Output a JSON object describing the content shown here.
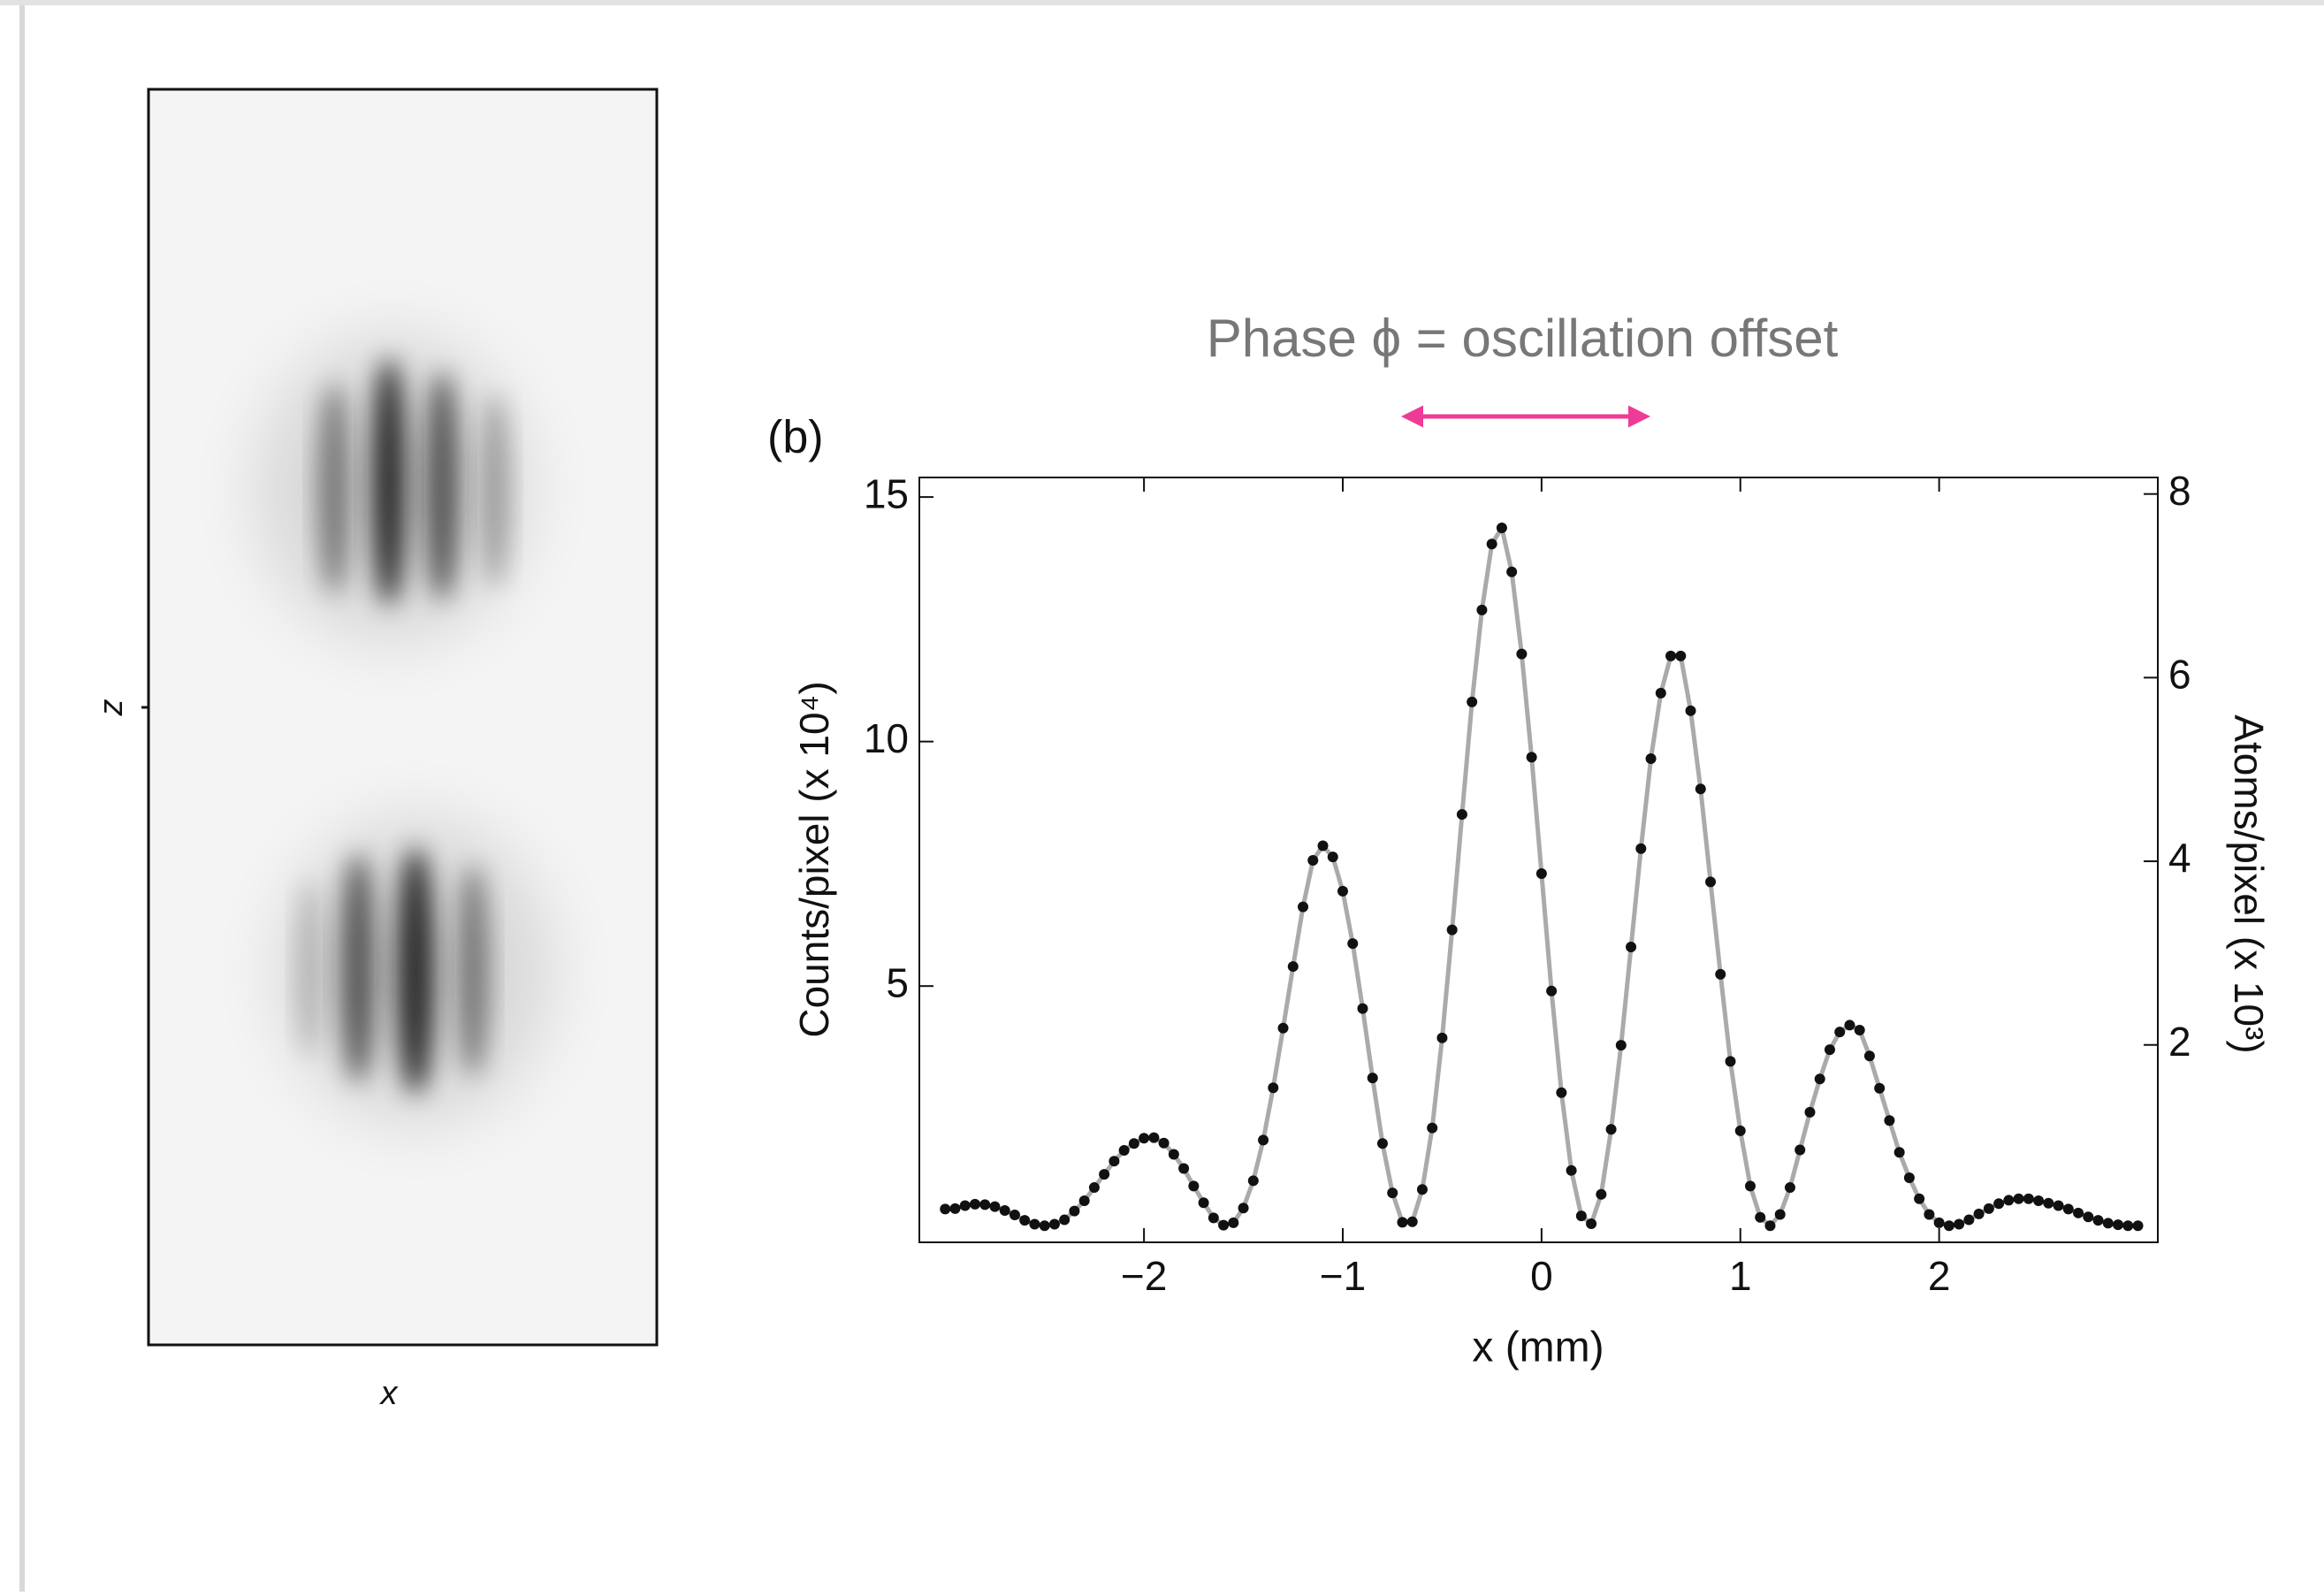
{
  "image_panel": {
    "xlabel": "x",
    "ylabel": "z"
  },
  "chart_data": {
    "type": "scatter",
    "panel_label": "(b)",
    "annotation": "Phase ϕ = oscillation offset",
    "xlabel": "x (mm)",
    "ylabel": "Counts/pixel (x 10⁴)",
    "y2label": "Atoms/pixel (x 10³)",
    "xlim": [
      -3.13,
      3.1
    ],
    "ylim": [
      -0.24,
      15.4
    ],
    "y2lim": [
      -0.15,
      8.18
    ],
    "xticks": [
      {
        "value": -2,
        "label": "−2"
      },
      {
        "value": -1,
        "label": "−1"
      },
      0,
      1,
      2
    ],
    "yticks": [
      5,
      10,
      15
    ],
    "y2ticks": [
      2,
      4,
      6,
      8
    ],
    "line_color": "#aaaaaa",
    "marker_color": "#111111",
    "annotation_color": "#ee3b96",
    "x": [
      -3.0,
      -2.95,
      -2.9,
      -2.85,
      -2.8,
      -2.75,
      -2.7,
      -2.65,
      -2.6,
      -2.55,
      -2.5,
      -2.45,
      -2.4,
      -2.35,
      -2.3,
      -2.25,
      -2.2,
      -2.15,
      -2.1,
      -2.05,
      -2.0,
      -1.95,
      -1.9,
      -1.85,
      -1.8,
      -1.75,
      -1.7,
      -1.65,
      -1.6,
      -1.55,
      -1.5,
      -1.45,
      -1.4,
      -1.35,
      -1.3,
      -1.25,
      -1.2,
      -1.15,
      -1.1,
      -1.05,
      -1.0,
      -0.95,
      -0.9,
      -0.85,
      -0.8,
      -0.75,
      -0.7,
      -0.65,
      -0.6,
      -0.55,
      -0.5,
      -0.45,
      -0.4,
      -0.35,
      -0.3,
      -0.25,
      -0.2,
      -0.15,
      -0.1,
      -0.05,
      0.0,
      0.05,
      0.1,
      0.15,
      0.2,
      0.25,
      0.3,
      0.35,
      0.4,
      0.45,
      0.5,
      0.55,
      0.6,
      0.65,
      0.7,
      0.75,
      0.8,
      0.85,
      0.9,
      0.95,
      1.0,
      1.05,
      1.1,
      1.15,
      1.2,
      1.25,
      1.3,
      1.35,
      1.4,
      1.45,
      1.5,
      1.55,
      1.6,
      1.65,
      1.7,
      1.75,
      1.8,
      1.85,
      1.9,
      1.95,
      2.0,
      2.05,
      2.1,
      2.15,
      2.2,
      2.25,
      2.3,
      2.35,
      2.4,
      2.45,
      2.5,
      2.55,
      2.6,
      2.65,
      2.7,
      2.75,
      2.8,
      2.85,
      2.9,
      2.95,
      3.0
    ],
    "values": [
      0.44,
      0.45,
      0.51,
      0.54,
      0.53,
      0.49,
      0.41,
      0.32,
      0.21,
      0.13,
      0.1,
      0.13,
      0.22,
      0.4,
      0.61,
      0.88,
      1.15,
      1.42,
      1.64,
      1.78,
      1.89,
      1.9,
      1.79,
      1.56,
      1.27,
      0.91,
      0.57,
      0.26,
      0.11,
      0.16,
      0.46,
      1.02,
      1.85,
      2.92,
      4.14,
      5.4,
      6.62,
      7.57,
      7.87,
      7.64,
      6.94,
      5.87,
      4.54,
      3.12,
      1.78,
      0.77,
      0.17,
      0.18,
      0.84,
      2.1,
      3.94,
      6.15,
      8.51,
      10.81,
      12.69,
      14.04,
      14.37,
      13.47,
      11.79,
      9.68,
      7.3,
      4.9,
      2.82,
      1.23,
      0.3,
      0.14,
      0.74,
      2.07,
      3.79,
      5.8,
      7.81,
      9.65,
      10.99,
      11.75,
      11.75,
      10.63,
      9.03,
      7.13,
      5.24,
      3.46,
      2.04,
      0.91,
      0.27,
      0.1,
      0.33,
      0.88,
      1.65,
      2.42,
      3.1,
      3.7,
      4.06,
      4.2,
      4.1,
      3.57,
      2.91,
      2.25,
      1.6,
      1.08,
      0.65,
      0.33,
      0.16,
      0.1,
      0.13,
      0.22,
      0.34,
      0.45,
      0.55,
      0.62,
      0.65,
      0.65,
      0.61,
      0.56,
      0.51,
      0.44,
      0.36,
      0.28,
      0.21,
      0.15,
      0.12,
      0.1,
      0.1
    ]
  }
}
